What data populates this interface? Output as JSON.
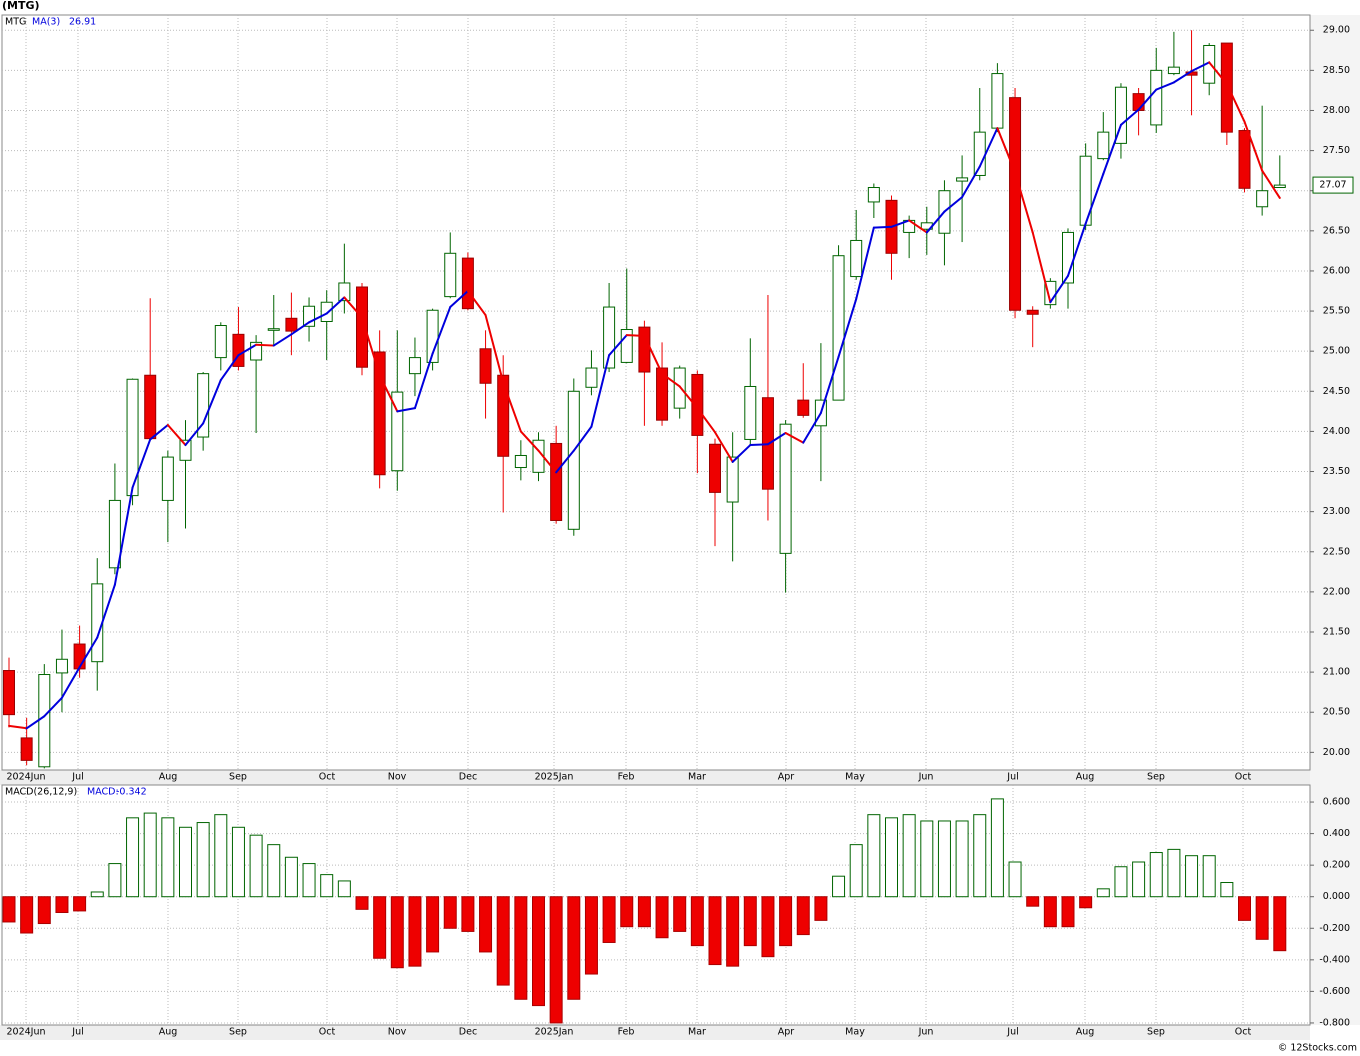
{
  "chart_data": [
    {
      "type": "candlestick",
      "title": "(MTG)",
      "symbol": "MTG",
      "open": [
        21.02,
        20.18,
        19.82,
        20.99,
        21.35,
        21.13,
        22.3,
        23.2,
        24.7,
        23.14,
        23.64,
        23.93,
        24.92,
        25.21,
        24.89,
        25.26,
        25.41,
        25.31,
        25.37,
        25.63,
        25.8,
        24.99,
        23.51,
        24.72,
        24.86,
        25.68,
        26.16,
        25.03,
        24.7,
        23.55,
        23.49,
        23.85,
        22.78,
        24.55,
        24.79,
        24.86,
        25.3,
        24.79,
        24.29,
        24.71,
        23.84,
        23.12,
        23.9,
        24.42,
        22.48,
        24.39,
        24.07,
        24.39,
        25.93,
        26.86,
        26.88,
        26.48,
        26.52,
        26.47,
        27.12,
        27.19,
        27.78,
        28.16,
        25.51,
        25.58,
        25.85,
        26.57,
        27.4,
        27.59,
        28.21,
        27.82,
        28.46,
        28.48,
        28.34,
        28.84,
        27.75,
        26.8,
        27.04
      ],
      "high": [
        21.18,
        20.43,
        21.1,
        21.53,
        21.58,
        22.42,
        23.6,
        24.66,
        25.66,
        23.76,
        24.14,
        24.74,
        25.36,
        25.55,
        25.2,
        25.7,
        25.73,
        25.67,
        25.76,
        26.34,
        25.85,
        25.26,
        25.26,
        25.17,
        25.53,
        26.48,
        26.23,
        25.26,
        24.95,
        23.89,
        23.99,
        24.07,
        24.66,
        25.01,
        25.85,
        26.03,
        25.38,
        25.11,
        24.82,
        24.76,
        23.91,
        23.99,
        25.16,
        25.7,
        24.14,
        24.85,
        25.1,
        26.32,
        26.76,
        27.09,
        26.94,
        26.69,
        26.8,
        27.13,
        27.44,
        28.28,
        28.59,
        28.28,
        25.56,
        25.91,
        26.53,
        27.59,
        27.98,
        28.34,
        28.28,
        28.78,
        28.98,
        29.0,
        28.84,
        28.84,
        27.78,
        28.06,
        27.44
      ],
      "low": [
        20.31,
        19.84,
        19.8,
        20.5,
        20.93,
        20.77,
        22.22,
        23.08,
        23.91,
        22.62,
        22.79,
        23.76,
        24.76,
        24.76,
        23.98,
        25.07,
        24.95,
        25.12,
        24.89,
        25.47,
        24.7,
        23.29,
        23.26,
        24.44,
        24.76,
        25.66,
        25.51,
        24.16,
        22.99,
        23.39,
        23.38,
        22.85,
        22.7,
        24.45,
        24.74,
        24.85,
        24.07,
        24.07,
        24.16,
        23.48,
        22.57,
        22.38,
        23.83,
        22.89,
        21.99,
        24.17,
        23.38,
        24.39,
        25.89,
        26.66,
        25.89,
        26.16,
        26.2,
        26.07,
        26.36,
        27.13,
        27.73,
        25.41,
        25.05,
        25.53,
        25.53,
        26.51,
        27.38,
        27.4,
        27.69,
        27.72,
        28.44,
        27.94,
        28.19,
        27.57,
        26.98,
        26.69,
        27.04
      ],
      "close": [
        20.47,
        19.9,
        20.97,
        21.16,
        21.04,
        22.1,
        23.14,
        24.65,
        23.91,
        23.68,
        23.89,
        24.72,
        25.32,
        24.81,
        25.11,
        25.28,
        25.25,
        25.56,
        25.61,
        25.85,
        24.8,
        23.46,
        24.49,
        24.92,
        25.51,
        26.22,
        25.53,
        24.6,
        23.69,
        23.7,
        23.89,
        22.89,
        24.5,
        24.79,
        25.55,
        25.27,
        24.74,
        24.14,
        24.79,
        23.95,
        23.24,
        23.68,
        24.56,
        23.28,
        24.09,
        24.2,
        24.39,
        26.19,
        26.38,
        27.04,
        26.22,
        26.63,
        26.6,
        27.0,
        27.16,
        27.73,
        28.46,
        25.51,
        25.46,
        25.87,
        26.48,
        27.43,
        27.73,
        28.29,
        28.0,
        28.5,
        28.54,
        28.44,
        28.81,
        27.73,
        27.03,
        27.0,
        27.07
      ],
      "up_color": "#006400",
      "down_color": "#ee0000",
      "ma": {
        "name": "MA(3)",
        "up_color": "#0000dd",
        "down_color": "#ee0000",
        "values": [
          20.33,
          20.3,
          20.45,
          20.68,
          21.06,
          21.43,
          22.09,
          23.3,
          23.9,
          24.08,
          23.83,
          24.1,
          24.64,
          24.95,
          25.08,
          25.07,
          25.21,
          25.36,
          25.47,
          25.67,
          25.42,
          24.7,
          24.25,
          24.29,
          24.97,
          25.55,
          25.75,
          25.45,
          24.61,
          24.0,
          23.76,
          23.49,
          23.76,
          24.06,
          24.95,
          25.2,
          25.19,
          24.72,
          24.56,
          24.29,
          23.99,
          23.62,
          23.83,
          23.84,
          23.98,
          23.86,
          24.23,
          24.93,
          25.65,
          26.54,
          26.55,
          26.63,
          26.48,
          26.74,
          26.92,
          27.3,
          27.78,
          27.23,
          26.48,
          25.61,
          25.94,
          26.59,
          27.21,
          27.82,
          28.01,
          28.26,
          28.35,
          28.49,
          28.6,
          28.33,
          27.86,
          27.25,
          26.91
        ]
      },
      "ylim": [
        19.78,
        29.19
      ],
      "yticks": [
        {
          "value": 20,
          "label": "20.00"
        },
        {
          "value": 20.5,
          "label": "20.50"
        },
        {
          "value": 21,
          "label": "21.00"
        },
        {
          "value": 21.5,
          "label": "21.50"
        },
        {
          "value": 22,
          "label": "22.00"
        },
        {
          "value": 22.5,
          "label": "22.50"
        },
        {
          "value": 23,
          "label": "23.00"
        },
        {
          "value": 23.5,
          "label": "23.50"
        },
        {
          "value": 24,
          "label": "24.00"
        },
        {
          "value": 24.5,
          "label": "24.50"
        },
        {
          "value": 25,
          "label": "25.00"
        },
        {
          "value": 25.5,
          "label": "25.50"
        },
        {
          "value": 26,
          "label": "26.00"
        },
        {
          "value": 26.5,
          "label": "26.50"
        },
        {
          "value": 27,
          "label": "27.00"
        },
        {
          "value": 27.5,
          "label": "27.50"
        },
        {
          "value": 28,
          "label": "28.00"
        },
        {
          "value": 28.5,
          "label": "28.50"
        },
        {
          "value": 29,
          "label": "29.00"
        }
      ],
      "xticks": [
        "2024Jun",
        "Jul",
        "Aug",
        "Sep",
        "Oct",
        "Nov",
        "Dec",
        "2025Jan",
        "Feb",
        "Mar",
        "Apr",
        "May",
        "Jun",
        "Jul",
        "Aug",
        "Sep",
        "Oct"
      ],
      "grid": true,
      "footer": "© 12Stocks.com"
    },
    {
      "type": "bar",
      "name": "MACD(26,12,9)",
      "value_prefix": "MACD:",
      "values": [
        -0.16,
        -0.23,
        -0.17,
        -0.1,
        -0.09,
        0.03,
        0.21,
        0.5,
        0.53,
        0.5,
        0.44,
        0.47,
        0.52,
        0.44,
        0.39,
        0.33,
        0.25,
        0.21,
        0.14,
        0.1,
        -0.08,
        -0.39,
        -0.45,
        -0.44,
        -0.35,
        -0.2,
        -0.22,
        -0.35,
        -0.56,
        -0.65,
        -0.69,
        -0.8,
        -0.65,
        -0.49,
        -0.29,
        -0.19,
        -0.19,
        -0.26,
        -0.22,
        -0.31,
        -0.43,
        -0.44,
        -0.31,
        -0.38,
        -0.31,
        -0.24,
        -0.15,
        0.13,
        0.33,
        0.52,
        0.5,
        0.52,
        0.48,
        0.48,
        0.48,
        0.52,
        0.62,
        0.22,
        -0.06,
        -0.19,
        -0.19,
        -0.07,
        0.05,
        0.19,
        0.22,
        0.28,
        0.3,
        0.26,
        0.26,
        0.09,
        -0.15,
        -0.27,
        -0.342
      ],
      "up_color": "#006400",
      "down_color": "#ee0000",
      "ylim": [
        -0.813,
        0.708
      ],
      "yticks": [
        {
          "value": 0.6,
          "label": "0.600"
        },
        {
          "value": 0.4,
          "label": "0.400"
        },
        {
          "value": 0.2,
          "label": "0.200"
        },
        {
          "value": 0,
          "label": "0.000"
        },
        {
          "value": -0.2,
          "label": "-0.200"
        },
        {
          "value": -0.4,
          "label": "-0.400"
        },
        {
          "value": -0.6,
          "label": "-0.600"
        },
        {
          "value": -0.8,
          "label": "-0.800"
        }
      ],
      "xticks": [
        "2024Jun",
        "Jul",
        "Aug",
        "Sep",
        "Oct",
        "Nov",
        "Dec",
        "2025Jan",
        "Feb",
        "Mar",
        "Apr",
        "May",
        "Jun",
        "Jul",
        "Aug",
        "Sep",
        "Oct"
      ],
      "grid": true
    }
  ]
}
